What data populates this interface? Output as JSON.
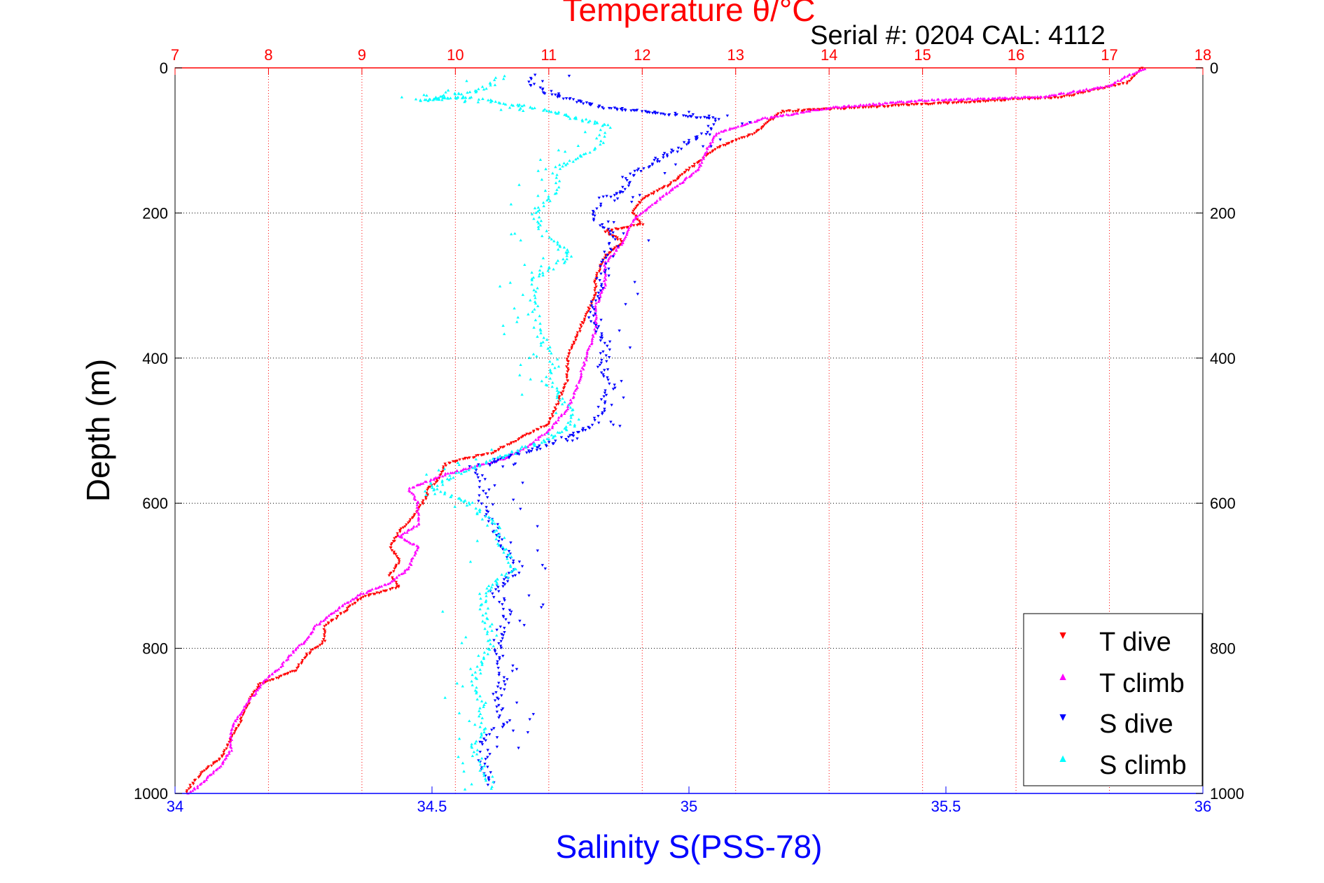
{
  "colors": {
    "t_dive": "#ff0000",
    "t_climb": "#ff00ff",
    "s_dive": "#0000ff",
    "s_climb": "#00ffff",
    "temp_axis": "#ff0000",
    "sal_axis": "#0000ff",
    "text": "#000000",
    "grid": "#000000"
  },
  "chart_data": {
    "type": "scatter",
    "title": "Temperature θ/°C",
    "subtitle": "Serial #: 0204  CAL: 4112",
    "ylabel": "Depth (m)",
    "xlabel": "Salinity S(PSS-78)",
    "ylim": [
      0,
      1000
    ],
    "y_reversed": true,
    "temp_lim": [
      7,
      18
    ],
    "sal_lim": [
      34,
      36
    ],
    "depth_ticks": [
      "0",
      "200",
      "400",
      "600",
      "800",
      "1000"
    ],
    "temp_ticks": [
      "7",
      "8",
      "9",
      "10",
      "11",
      "12",
      "13",
      "14",
      "15",
      "16",
      "17",
      "18"
    ],
    "sal_ticks": [
      "34",
      "34.5",
      "35",
      "35.5",
      "36"
    ],
    "grid": true,
    "legend_position": "bottom-right",
    "legend": [
      "T dive",
      "T climb",
      "S dive",
      "S climb"
    ],
    "series": [
      {
        "name": "T dive",
        "x_axis": "temperature",
        "marker": "triangle-down",
        "points": [
          [
            17.35,
            0
          ],
          [
            17.2,
            20
          ],
          [
            16.5,
            40
          ],
          [
            15.0,
            50
          ],
          [
            13.5,
            60
          ],
          [
            13.4,
            70
          ],
          [
            13.2,
            90
          ],
          [
            12.8,
            110
          ],
          [
            12.7,
            120
          ],
          [
            12.5,
            140
          ],
          [
            12.3,
            160
          ],
          [
            12.0,
            180
          ],
          [
            11.9,
            200
          ],
          [
            12.0,
            215
          ],
          [
            11.6,
            225
          ],
          [
            11.8,
            240
          ],
          [
            11.6,
            260
          ],
          [
            11.5,
            290
          ],
          [
            11.5,
            310
          ],
          [
            11.4,
            340
          ],
          [
            11.3,
            370
          ],
          [
            11.2,
            400
          ],
          [
            11.2,
            430
          ],
          [
            11.1,
            460
          ],
          [
            11.0,
            490
          ],
          [
            10.7,
            510
          ],
          [
            10.4,
            530
          ],
          [
            9.9,
            545
          ],
          [
            9.8,
            570
          ],
          [
            9.7,
            580
          ],
          [
            9.7,
            590
          ],
          [
            9.6,
            610
          ],
          [
            9.4,
            640
          ],
          [
            9.3,
            660
          ],
          [
            9.4,
            680
          ],
          [
            9.3,
            700
          ],
          [
            9.4,
            715
          ],
          [
            9.0,
            730
          ],
          [
            8.8,
            750
          ],
          [
            8.6,
            770
          ],
          [
            8.6,
            790
          ],
          [
            8.4,
            810
          ],
          [
            8.3,
            830
          ],
          [
            7.9,
            850
          ],
          [
            7.8,
            870
          ],
          [
            7.7,
            900
          ],
          [
            7.6,
            925
          ],
          [
            7.5,
            950
          ],
          [
            7.3,
            970
          ],
          [
            7.1,
            1000
          ]
        ]
      },
      {
        "name": "T climb",
        "x_axis": "temperature",
        "marker": "triangle-up",
        "points": [
          [
            7.15,
            1000
          ],
          [
            7.3,
            985
          ],
          [
            7.5,
            960
          ],
          [
            7.6,
            940
          ],
          [
            7.6,
            910
          ],
          [
            7.7,
            890
          ],
          [
            7.8,
            870
          ],
          [
            8.0,
            840
          ],
          [
            8.1,
            830
          ],
          [
            8.3,
            800
          ],
          [
            8.4,
            790
          ],
          [
            8.5,
            770
          ],
          [
            8.6,
            760
          ],
          [
            8.8,
            740
          ],
          [
            9.0,
            725
          ],
          [
            9.3,
            710
          ],
          [
            9.5,
            690
          ],
          [
            9.6,
            660
          ],
          [
            9.4,
            645
          ],
          [
            9.6,
            630
          ],
          [
            9.6,
            600
          ],
          [
            9.5,
            580
          ],
          [
            9.9,
            560
          ],
          [
            10.5,
            540
          ],
          [
            10.8,
            520
          ],
          [
            11.0,
            500
          ],
          [
            11.2,
            470
          ],
          [
            11.3,
            440
          ],
          [
            11.4,
            400
          ],
          [
            11.5,
            360
          ],
          [
            11.5,
            330
          ],
          [
            11.6,
            300
          ],
          [
            11.6,
            270
          ],
          [
            11.8,
            240
          ],
          [
            11.9,
            210
          ],
          [
            12.2,
            180
          ],
          [
            12.4,
            160
          ],
          [
            12.6,
            140
          ],
          [
            12.7,
            110
          ],
          [
            12.8,
            90
          ],
          [
            13.3,
            70
          ],
          [
            14.0,
            55
          ],
          [
            15.0,
            45
          ],
          [
            16.3,
            40
          ],
          [
            17.0,
            25
          ],
          [
            17.2,
            10
          ],
          [
            17.4,
            0
          ]
        ]
      },
      {
        "name": "S dive",
        "x_axis": "salinity",
        "marker": "triangle-down",
        "points": [
          [
            34.7,
            10
          ],
          [
            34.69,
            20
          ],
          [
            34.72,
            35
          ],
          [
            34.78,
            45
          ],
          [
            34.83,
            55
          ],
          [
            35.05,
            70
          ],
          [
            35.03,
            90
          ],
          [
            34.98,
            110
          ],
          [
            34.93,
            130
          ],
          [
            34.88,
            150
          ],
          [
            34.87,
            170
          ],
          [
            34.82,
            180
          ],
          [
            34.82,
            210
          ],
          [
            34.85,
            230
          ],
          [
            34.84,
            260
          ],
          [
            34.83,
            290
          ],
          [
            34.82,
            320
          ],
          [
            34.81,
            350
          ],
          [
            34.84,
            380
          ],
          [
            34.83,
            410
          ],
          [
            34.85,
            440
          ],
          [
            34.83,
            470
          ],
          [
            34.82,
            490
          ],
          [
            34.76,
            510
          ],
          [
            34.68,
            530
          ],
          [
            34.58,
            550
          ],
          [
            34.6,
            575
          ],
          [
            34.6,
            600
          ],
          [
            34.62,
            630
          ],
          [
            34.64,
            660
          ],
          [
            34.67,
            690
          ],
          [
            34.62,
            720
          ],
          [
            34.65,
            750
          ],
          [
            34.63,
            780
          ],
          [
            34.63,
            810
          ],
          [
            34.64,
            840
          ],
          [
            34.62,
            870
          ],
          [
            34.64,
            900
          ],
          [
            34.6,
            930
          ],
          [
            34.6,
            960
          ],
          [
            34.62,
            990
          ]
        ]
      },
      {
        "name": "S climb",
        "x_axis": "salinity",
        "marker": "triangle-up",
        "points": [
          [
            34.62,
            995
          ],
          [
            34.6,
            965
          ],
          [
            34.58,
            935
          ],
          [
            34.6,
            905
          ],
          [
            34.6,
            875
          ],
          [
            34.58,
            845
          ],
          [
            34.6,
            815
          ],
          [
            34.62,
            785
          ],
          [
            34.6,
            755
          ],
          [
            34.6,
            725
          ],
          [
            34.66,
            690
          ],
          [
            34.64,
            660
          ],
          [
            34.62,
            630
          ],
          [
            34.57,
            600
          ],
          [
            34.5,
            580
          ],
          [
            34.55,
            560
          ],
          [
            34.66,
            530
          ],
          [
            34.73,
            510
          ],
          [
            34.78,
            490
          ],
          [
            34.76,
            460
          ],
          [
            34.72,
            430
          ],
          [
            34.74,
            410
          ],
          [
            34.72,
            380
          ],
          [
            34.7,
            350
          ],
          [
            34.7,
            320
          ],
          [
            34.7,
            290
          ],
          [
            34.77,
            260
          ],
          [
            34.72,
            230
          ],
          [
            34.7,
            200
          ],
          [
            34.74,
            170
          ],
          [
            34.74,
            140
          ],
          [
            34.82,
            110
          ],
          [
            34.84,
            80
          ],
          [
            34.73,
            60
          ],
          [
            34.57,
            40
          ],
          [
            34.48,
            45
          ],
          [
            34.6,
            30
          ],
          [
            34.64,
            10
          ]
        ]
      }
    ]
  }
}
